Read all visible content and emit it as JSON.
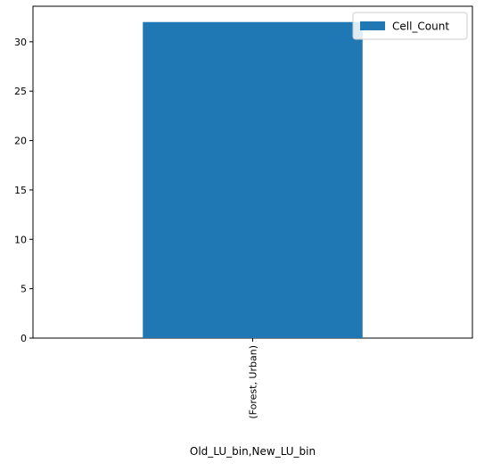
{
  "chart_data": {
    "type": "bar",
    "categories": [
      "(Forest, Urban)"
    ],
    "series": [
      {
        "name": "Cell_Count",
        "values": [
          32
        ]
      }
    ],
    "xlabel": "Old_LU_bin,New_LU_bin",
    "ylabel": "",
    "ylim": [
      0,
      33.6
    ],
    "yticks": [
      0,
      5,
      10,
      15,
      20,
      25,
      30
    ],
    "grid": false,
    "legend": "top-right",
    "bar_color": "#1f77b4"
  }
}
